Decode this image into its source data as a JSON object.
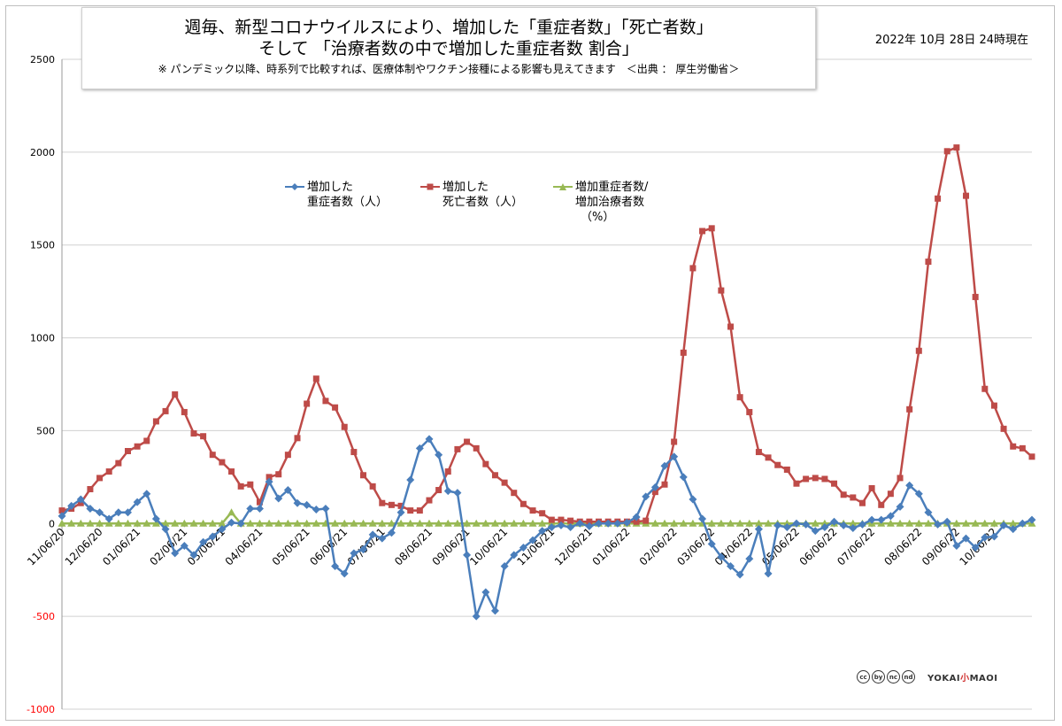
{
  "title": {
    "line1": "週毎、新型コロナウイルスにより、増加した「重症者数」「死亡者数」",
    "line2": "そして 「治療者数の中で増加した重症者数 割合」",
    "note": "※ パンデミック以降、時系列で比較すれば、医療体制やワクチン接種による影響も見えてきます　＜出典 ： 厚生労働省＞"
  },
  "date_stamp": "2022年 10月 28日 24時現在",
  "credits": {
    "cc_icons": [
      "cc",
      "by",
      "nc",
      "nd"
    ],
    "logo_text": "YOKAI",
    "logo_accent": "小",
    "logo_suffix": "MAOI"
  },
  "chart_data": {
    "type": "line",
    "ylim": [
      -1000,
      2500
    ],
    "yticks": [
      -1000,
      -500,
      0,
      500,
      1000,
      1500,
      2000,
      2500
    ],
    "ytick_labels": [
      "-1000",
      "-500",
      "0",
      "500",
      "1000",
      "1500",
      "2000",
      "2500"
    ],
    "xtick_labels": [
      "11/06/20",
      "12/06/20",
      "01/06/21",
      "02/06/21",
      "03/06/21",
      "04/06/21",
      "05/06/21",
      "06/06/21",
      "07/06/21",
      "08/06/21",
      "09/06/21",
      "10/06/21",
      "11/06/21",
      "12/06/21",
      "01/06/22",
      "02/06/22",
      "03/06/22",
      "04/06/22",
      "05/06/22",
      "06/06/22",
      "07/06/22",
      "08/06/22",
      "09/06/22",
      "10/06/22"
    ],
    "xtick_index": [
      0,
      4,
      8,
      13,
      17,
      21,
      26,
      30,
      34,
      39,
      43,
      47,
      52,
      56,
      60,
      65,
      69,
      73,
      78,
      82,
      86,
      91,
      95,
      99
    ],
    "grid": true,
    "legend": "top-center",
    "colors": {
      "severe": "#4a7ebb",
      "deaths": "#be4b48",
      "ratio": "#98b954",
      "axis_negative": "#ff0000"
    },
    "series": [
      {
        "key": "severe",
        "name": [
          "増加した",
          "重症者数（人）"
        ],
        "marker": "diamond",
        "values": [
          40,
          95,
          130,
          80,
          60,
          25,
          60,
          60,
          115,
          160,
          25,
          -30,
          -160,
          -120,
          -170,
          -100,
          -70,
          -30,
          5,
          0,
          80,
          80,
          225,
          135,
          180,
          110,
          100,
          75,
          80,
          -230,
          -270,
          -160,
          -140,
          -60,
          -80,
          -50,
          60,
          235,
          405,
          455,
          370,
          175,
          165,
          -170,
          -500,
          -370,
          -470,
          -230,
          -170,
          -130,
          -90,
          -40,
          -20,
          -10,
          -20,
          0,
          -15,
          0,
          0,
          0,
          5,
          35,
          145,
          195,
          310,
          360,
          250,
          130,
          25,
          -110,
          -180,
          -230,
          -275,
          -190,
          -30,
          -270,
          -10,
          -20,
          0,
          -5,
          -40,
          -20,
          10,
          -10,
          -25,
          -5,
          20,
          20,
          40,
          90,
          205,
          160,
          60,
          -5,
          10,
          -120,
          -80,
          -130,
          -75,
          -70,
          -10,
          -30,
          0,
          20
        ]
      },
      {
        "key": "deaths",
        "name": [
          "増加した",
          "死亡者数（人）"
        ],
        "marker": "square",
        "values": [
          70,
          80,
          110,
          185,
          245,
          280,
          325,
          390,
          415,
          445,
          550,
          605,
          695,
          600,
          485,
          470,
          370,
          330,
          280,
          200,
          210,
          115,
          250,
          265,
          370,
          460,
          645,
          780,
          660,
          625,
          520,
          385,
          260,
          200,
          110,
          100,
          95,
          70,
          70,
          125,
          180,
          280,
          400,
          440,
          405,
          320,
          260,
          220,
          165,
          105,
          70,
          55,
          20,
          20,
          15,
          10,
          10,
          10,
          10,
          10,
          10,
          10,
          15,
          170,
          210,
          440,
          920,
          1375,
          1575,
          1590,
          1255,
          1060,
          680,
          600,
          385,
          355,
          315,
          290,
          215,
          240,
          245,
          240,
          215,
          155,
          140,
          110,
          190,
          100,
          160,
          245,
          615,
          930,
          1410,
          1750,
          2005,
          2025,
          1765,
          1220,
          725,
          635,
          510,
          415,
          405,
          360
        ]
      },
      {
        "key": "ratio",
        "name": [
          "増加重症者数/",
          "増加治療者数",
          "（%）"
        ],
        "marker": "triangle",
        "values": [
          0,
          0,
          0,
          0,
          0,
          0,
          0,
          0,
          0,
          0,
          0,
          0,
          0,
          0,
          0,
          0,
          0,
          0,
          60,
          0,
          0,
          0,
          0,
          0,
          0,
          0,
          0,
          0,
          0,
          0,
          0,
          0,
          0,
          0,
          0,
          0,
          0,
          0,
          0,
          0,
          0,
          0,
          0,
          0,
          0,
          0,
          0,
          0,
          0,
          0,
          0,
          0,
          0,
          0,
          0,
          0,
          0,
          0,
          0,
          0,
          0,
          0,
          0,
          0,
          0,
          0,
          0,
          0,
          0,
          0,
          0,
          0,
          0,
          0,
          0,
          0,
          0,
          0,
          0,
          0,
          0,
          0,
          0,
          0,
          0,
          0,
          0,
          0,
          0,
          0,
          0,
          0,
          0,
          0,
          0,
          0,
          0,
          0,
          0,
          0,
          0,
          0,
          0,
          0
        ]
      }
    ]
  }
}
